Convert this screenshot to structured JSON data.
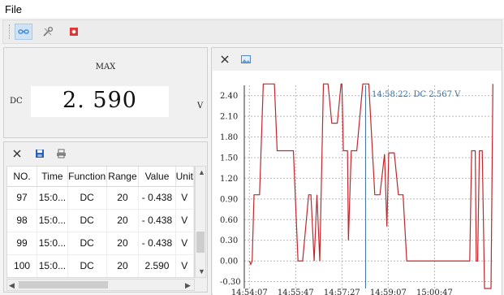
{
  "menu": {
    "file": "File"
  },
  "colors": {
    "accent": "#cfe3f6",
    "trace": "#c0282e",
    "cursor": "#3c6c9c"
  },
  "toolbar": {
    "buttons": [
      {
        "icon": "connect-icon",
        "active": true
      },
      {
        "icon": "settings-tools-icon",
        "active": false
      },
      {
        "icon": "record-stop-icon",
        "active": false
      }
    ]
  },
  "meter": {
    "mode": "MAX",
    "function": "DC",
    "value": "2. 590",
    "unit": "V"
  },
  "table": {
    "tools": [
      "close-icon",
      "save-icon",
      "print-icon"
    ],
    "columns": [
      "NO.",
      "Time",
      "Function",
      "Range",
      "Value",
      "Unit"
    ],
    "rows": [
      {
        "no": "97",
        "time": "15:0...",
        "function": "DC",
        "range": "20",
        "value": "- 0.438",
        "unit": "V"
      },
      {
        "no": "98",
        "time": "15:0...",
        "function": "DC",
        "range": "20",
        "value": "- 0.438",
        "unit": "V"
      },
      {
        "no": "99",
        "time": "15:0...",
        "function": "DC",
        "range": "20",
        "value": "- 0.438",
        "unit": "V"
      },
      {
        "no": "100",
        "time": "15:0...",
        "function": "DC",
        "range": "20",
        "value": "2.590",
        "unit": "V"
      }
    ]
  },
  "chart_tools": [
    "close-icon",
    "image-export-icon"
  ],
  "chart_data": {
    "type": "line",
    "title": "",
    "xlabel": "",
    "ylabel": "",
    "cursor_label": "14:58:22: DC  2.567 V",
    "ylim": [
      -0.4,
      2.55
    ],
    "yticks": [
      "2.40",
      "2.10",
      "1.80",
      "1.50",
      "1.20",
      "0.90",
      "0.60",
      "0.30",
      "0.00",
      "-0.30"
    ],
    "ytick_values": [
      2.4,
      2.1,
      1.8,
      1.5,
      1.2,
      0.9,
      0.6,
      0.3,
      0.0,
      -0.3
    ],
    "xticks": [
      "14:54:07",
      "14:55:47",
      "14:57:27",
      "14:59:07",
      "15:00:47"
    ],
    "xtick_seconds": [
      0,
      100,
      200,
      300,
      400
    ],
    "grid": true,
    "series": [
      {
        "x": [
          0,
          3,
          6,
          10,
          14,
          22,
          30,
          38,
          54,
          60,
          66,
          78,
          85,
          95,
          105,
          115,
          128,
          133,
          140,
          146,
          152,
          160,
          164,
          170,
          178,
          190,
          198,
          200,
          203,
          208,
          212,
          214,
          220,
          232,
          245,
          258,
          271,
          282,
          292,
          297,
          301,
          313,
          322,
          332,
          340,
          360,
          378,
          400,
          430,
          455,
          476,
          480,
          488,
          490,
          493,
          497,
          503,
          508,
          512,
          522,
          526
        ],
        "y": [
          0.0,
          -0.05,
          0.0,
          0.96,
          0.96,
          0.96,
          2.57,
          2.57,
          2.57,
          1.6,
          1.6,
          1.6,
          1.6,
          1.6,
          0.0,
          0.0,
          0.96,
          0.96,
          0.0,
          0.96,
          0.0,
          2.57,
          2.57,
          2.57,
          2.0,
          2.0,
          2.57,
          2.57,
          1.6,
          1.6,
          1.6,
          0.3,
          1.6,
          1.6,
          2.57,
          2.57,
          0.96,
          0.96,
          1.55,
          0.5,
          1.57,
          1.57,
          0.96,
          0.96,
          0.0,
          0.0,
          0.0,
          0.0,
          0.0,
          0.0,
          0.0,
          1.6,
          1.6,
          0.0,
          0.0,
          1.6,
          1.6,
          -0.4,
          -0.4,
          -0.4,
          2.57
        ]
      }
    ],
    "cursor_x": 251
  }
}
